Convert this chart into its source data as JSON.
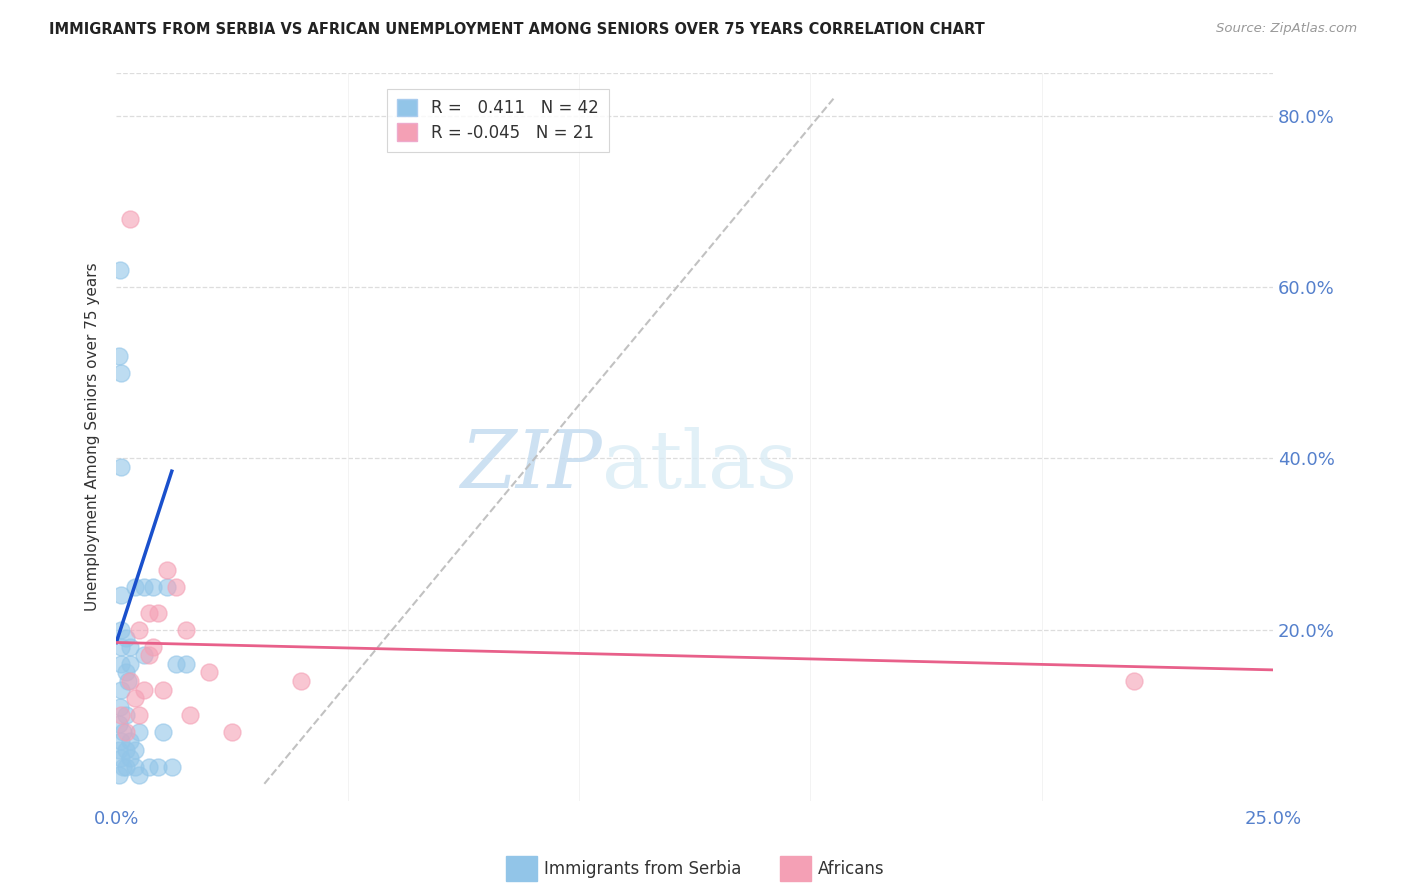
{
  "title": "IMMIGRANTS FROM SERBIA VS AFRICAN UNEMPLOYMENT AMONG SENIORS OVER 75 YEARS CORRELATION CHART",
  "source": "Source: ZipAtlas.com",
  "ylabel": "Unemployment Among Seniors over 75 years",
  "xlim": [
    0.0,
    0.25
  ],
  "ylim": [
    0.0,
    0.85
  ],
  "xticks": [
    0.0,
    0.05,
    0.1,
    0.15,
    0.2,
    0.25
  ],
  "xtick_labels": [
    "0.0%",
    "",
    "",
    "",
    "",
    "25.0%"
  ],
  "yticks_right": [
    0.0,
    0.2,
    0.4,
    0.6,
    0.8
  ],
  "ytick_labels_right": [
    "",
    "20.0%",
    "40.0%",
    "60.0%",
    "80.0%"
  ],
  "serbia_color": "#92C5E8",
  "africa_color": "#F4A0B5",
  "serbia_trend_color": "#1A50CC",
  "africa_trend_color": "#E8608A",
  "dashed_trend_color": "#BBBBBB",
  "legend_r_serbia": "0.411",
  "legend_n_serbia": "42",
  "legend_r_africa": "-0.045",
  "legend_n_africa": "21",
  "serbia_x": [
    0.0005,
    0.0005,
    0.0005,
    0.0008,
    0.001,
    0.001,
    0.001,
    0.001,
    0.0015,
    0.0015,
    0.002,
    0.002,
    0.002,
    0.002,
    0.002,
    0.0025,
    0.003,
    0.003,
    0.003,
    0.003,
    0.004,
    0.004,
    0.004,
    0.005,
    0.005,
    0.006,
    0.006,
    0.007,
    0.008,
    0.009,
    0.01,
    0.011,
    0.012,
    0.013,
    0.015,
    0.0005,
    0.0008,
    0.001,
    0.001,
    0.001,
    0.001,
    0.001
  ],
  "serbia_y": [
    0.03,
    0.06,
    0.09,
    0.11,
    0.05,
    0.07,
    0.13,
    0.16,
    0.04,
    0.08,
    0.04,
    0.06,
    0.1,
    0.15,
    0.19,
    0.14,
    0.05,
    0.07,
    0.16,
    0.18,
    0.04,
    0.06,
    0.25,
    0.03,
    0.08,
    0.17,
    0.25,
    0.04,
    0.25,
    0.04,
    0.08,
    0.25,
    0.04,
    0.16,
    0.16,
    0.52,
    0.62,
    0.5,
    0.2,
    0.24,
    0.39,
    0.18
  ],
  "africa_x": [
    0.001,
    0.002,
    0.003,
    0.003,
    0.004,
    0.005,
    0.005,
    0.006,
    0.007,
    0.007,
    0.008,
    0.009,
    0.01,
    0.011,
    0.013,
    0.015,
    0.016,
    0.02,
    0.025,
    0.04,
    0.22
  ],
  "africa_y": [
    0.1,
    0.08,
    0.14,
    0.68,
    0.12,
    0.1,
    0.2,
    0.13,
    0.17,
    0.22,
    0.18,
    0.22,
    0.13,
    0.27,
    0.25,
    0.2,
    0.1,
    0.15,
    0.08,
    0.14,
    0.14
  ],
  "dashed_line_x": [
    0.032,
    0.155
  ],
  "dashed_line_y": [
    0.02,
    0.82
  ],
  "serbia_trend_x": [
    0.0,
    0.012
  ],
  "serbia_trend_y": [
    0.185,
    0.385
  ],
  "africa_trend_x": [
    0.0,
    0.25
  ],
  "africa_trend_y": [
    0.185,
    0.153
  ],
  "watermark_zip": "ZIP",
  "watermark_atlas": "atlas",
  "background_color": "#FFFFFF",
  "grid_color": "#DDDDDD"
}
